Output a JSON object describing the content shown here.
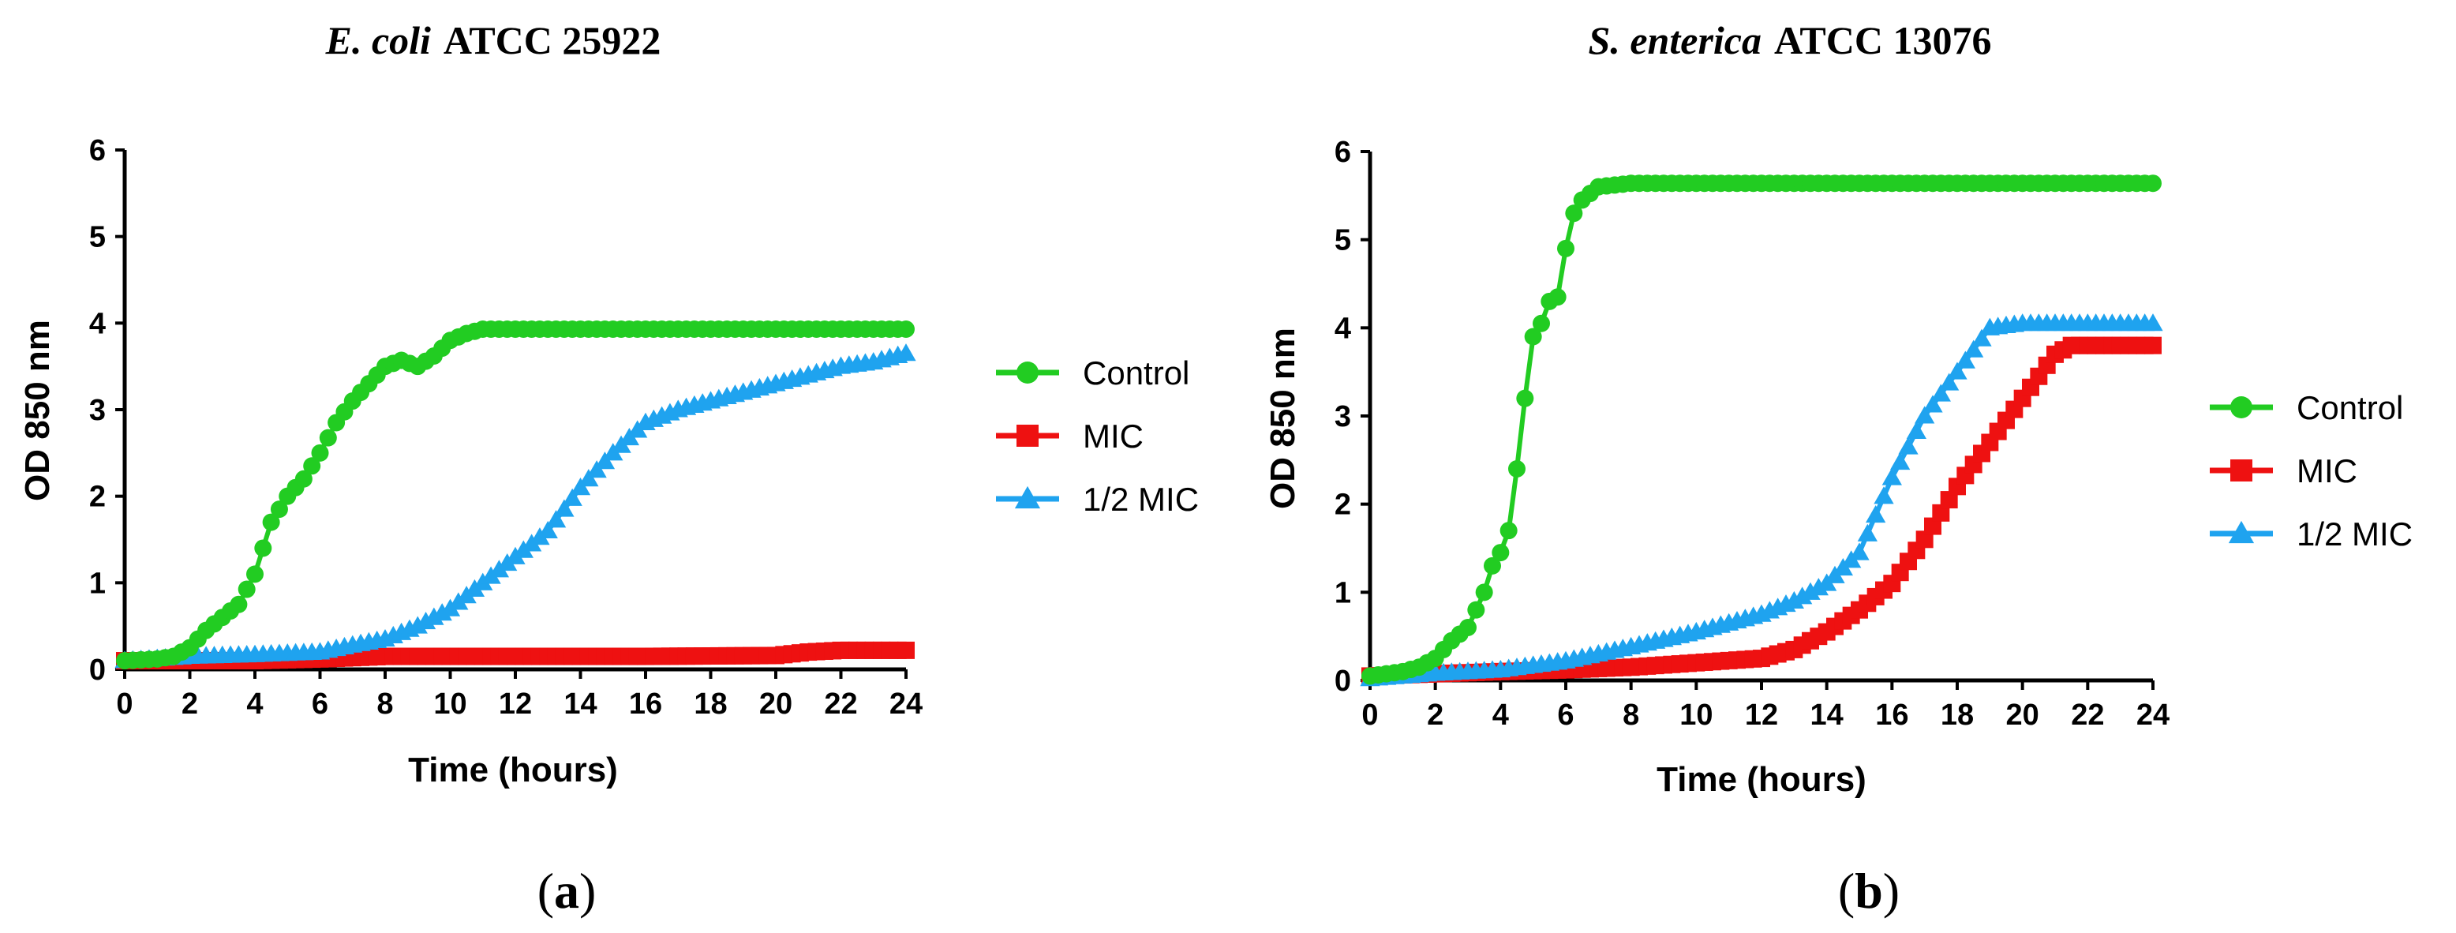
{
  "chart_data": [
    {
      "type": "line",
      "panel_label": "a",
      "title_italic": "E. coli",
      "title_rest": "ATCC 25922",
      "xlabel": "Time (hours)",
      "ylabel": "OD 850 nm",
      "xlim": [
        0,
        24
      ],
      "ylim": [
        0,
        6
      ],
      "xticks": [
        0,
        2,
        4,
        6,
        8,
        10,
        12,
        14,
        16,
        18,
        20,
        22,
        24
      ],
      "yticks": [
        0,
        1,
        2,
        3,
        4,
        5,
        6
      ],
      "legend_position": "right",
      "series": [
        {
          "name": "Control",
          "color": "#22cc22",
          "marker": "circle",
          "points": [
            [
              0,
              0.1
            ],
            [
              1,
              0.12
            ],
            [
              1.5,
              0.15
            ],
            [
              2,
              0.25
            ],
            [
              2.5,
              0.45
            ],
            [
              3,
              0.6
            ],
            [
              3.5,
              0.75
            ],
            [
              4,
              1.1
            ],
            [
              4.25,
              1.4
            ],
            [
              4.5,
              1.7
            ],
            [
              5,
              2.0
            ],
            [
              5.5,
              2.2
            ],
            [
              6,
              2.5
            ],
            [
              6.5,
              2.85
            ],
            [
              7,
              3.1
            ],
            [
              7.5,
              3.3
            ],
            [
              8,
              3.5
            ],
            [
              8.5,
              3.57
            ],
            [
              9,
              3.5
            ],
            [
              9.5,
              3.62
            ],
            [
              10,
              3.8
            ],
            [
              10.5,
              3.88
            ],
            [
              11,
              3.93
            ],
            [
              12,
              3.93
            ],
            [
              24,
              3.93
            ]
          ]
        },
        {
          "name": "MIC",
          "color": "#ee1111",
          "marker": "square",
          "points": [
            [
              0,
              0.1
            ],
            [
              4,
              0.1
            ],
            [
              6,
              0.12
            ],
            [
              8,
              0.15
            ],
            [
              10,
              0.15
            ],
            [
              16,
              0.15
            ],
            [
              20,
              0.16
            ],
            [
              21,
              0.2
            ],
            [
              22,
              0.22
            ],
            [
              24,
              0.22
            ]
          ]
        },
        {
          "name": "1/2 MIC",
          "color": "#1fa3ef",
          "marker": "triangle",
          "points": [
            [
              0,
              0.1
            ],
            [
              2,
              0.15
            ],
            [
              4,
              0.17
            ],
            [
              6,
              0.2
            ],
            [
              7,
              0.28
            ],
            [
              8,
              0.35
            ],
            [
              9,
              0.5
            ],
            [
              10,
              0.7
            ],
            [
              11,
              1.0
            ],
            [
              12,
              1.3
            ],
            [
              13,
              1.6
            ],
            [
              14,
              2.1
            ],
            [
              15,
              2.5
            ],
            [
              16,
              2.85
            ],
            [
              17,
              3.0
            ],
            [
              18,
              3.1
            ],
            [
              19,
              3.2
            ],
            [
              20,
              3.3
            ],
            [
              21,
              3.4
            ],
            [
              22,
              3.5
            ],
            [
              23,
              3.55
            ],
            [
              24,
              3.65
            ]
          ]
        }
      ]
    },
    {
      "type": "line",
      "panel_label": "b",
      "title_italic": "S. enterica",
      "title_rest": "ATCC 13076",
      "xlabel": "Time (hours)",
      "ylabel": "OD 850 nm",
      "xlim": [
        0,
        24
      ],
      "ylim": [
        0,
        6
      ],
      "xticks": [
        0,
        2,
        4,
        6,
        8,
        10,
        12,
        14,
        16,
        18,
        20,
        22,
        24
      ],
      "yticks": [
        0,
        1,
        2,
        3,
        4,
        5,
        6
      ],
      "legend_position": "right",
      "series": [
        {
          "name": "Control",
          "color": "#22cc22",
          "marker": "circle",
          "points": [
            [
              0,
              0.05
            ],
            [
              1,
              0.1
            ],
            [
              1.5,
              0.15
            ],
            [
              2,
              0.25
            ],
            [
              2.5,
              0.45
            ],
            [
              3,
              0.6
            ],
            [
              3.25,
              0.8
            ],
            [
              3.5,
              1.0
            ],
            [
              3.75,
              1.3
            ],
            [
              4,
              1.45
            ],
            [
              4.25,
              1.7
            ],
            [
              4.5,
              2.4
            ],
            [
              4.75,
              3.2
            ],
            [
              5,
              3.9
            ],
            [
              5.25,
              4.05
            ],
            [
              5.5,
              4.3
            ],
            [
              5.75,
              4.35
            ],
            [
              6,
              4.9
            ],
            [
              6.25,
              5.3
            ],
            [
              6.5,
              5.45
            ],
            [
              7,
              5.6
            ],
            [
              8,
              5.64
            ],
            [
              24,
              5.64
            ]
          ]
        },
        {
          "name": "MIC",
          "color": "#ee1111",
          "marker": "square",
          "points": [
            [
              0,
              0.05
            ],
            [
              4,
              0.1
            ],
            [
              6,
              0.12
            ],
            [
              8,
              0.15
            ],
            [
              10,
              0.2
            ],
            [
              12,
              0.25
            ],
            [
              13,
              0.35
            ],
            [
              14,
              0.55
            ],
            [
              15,
              0.8
            ],
            [
              16,
              1.1
            ],
            [
              17,
              1.6
            ],
            [
              18,
              2.2
            ],
            [
              19,
              2.7
            ],
            [
              20,
              3.2
            ],
            [
              21,
              3.7
            ],
            [
              21.5,
              3.8
            ],
            [
              24,
              3.8
            ]
          ]
        },
        {
          "name": "1/2 MIC",
          "color": "#1fa3ef",
          "marker": "triangle",
          "points": [
            [
              0,
              0.02
            ],
            [
              2,
              0.08
            ],
            [
              4,
              0.12
            ],
            [
              6,
              0.22
            ],
            [
              8,
              0.38
            ],
            [
              10,
              0.55
            ],
            [
              12,
              0.75
            ],
            [
              13,
              0.9
            ],
            [
              14,
              1.1
            ],
            [
              15,
              1.45
            ],
            [
              16,
              2.3
            ],
            [
              17,
              3.0
            ],
            [
              18,
              3.5
            ],
            [
              19,
              4.0
            ],
            [
              20,
              4.05
            ],
            [
              24,
              4.05
            ]
          ]
        }
      ]
    }
  ]
}
